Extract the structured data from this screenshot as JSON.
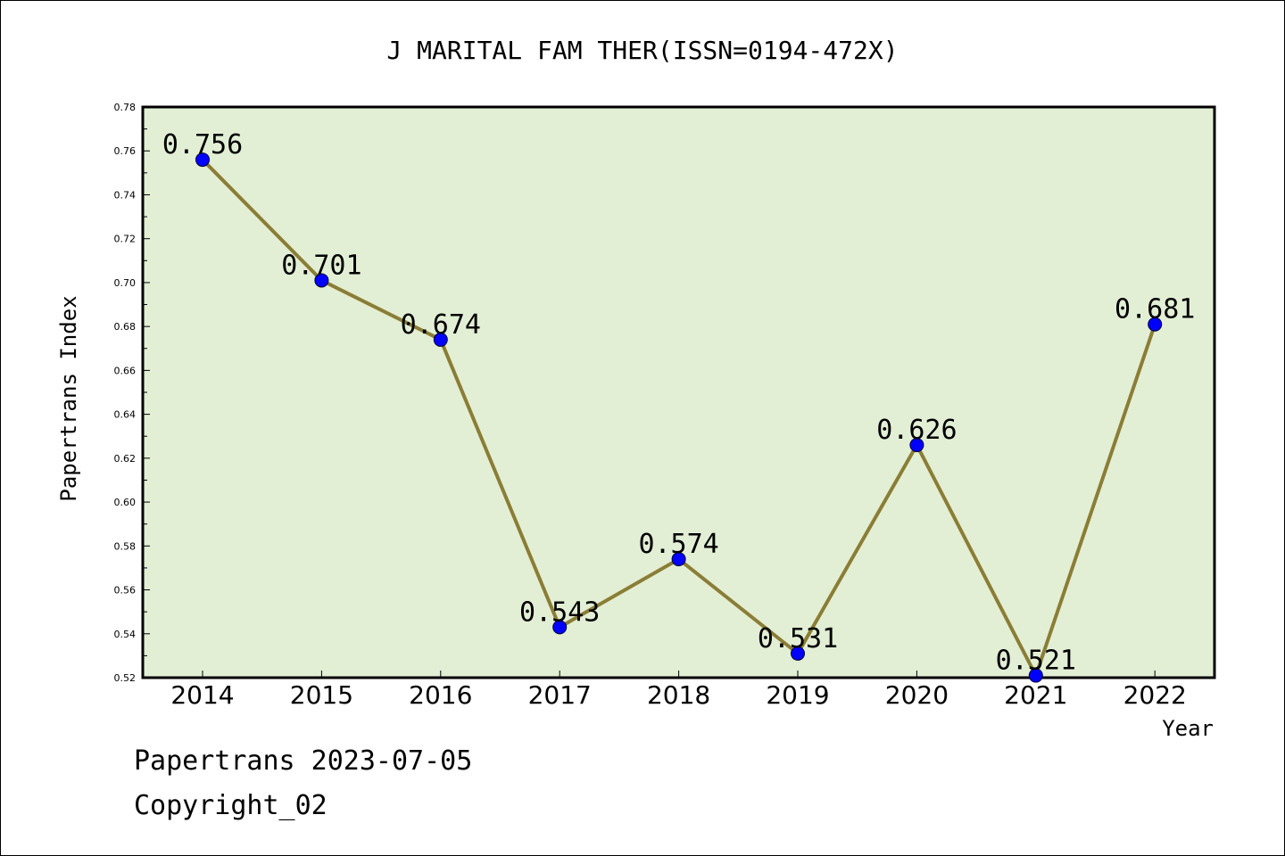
{
  "chart_data": {
    "type": "line",
    "title": "J MARITAL FAM THER(ISSN=0194-472X)",
    "xlabel": "Year",
    "ylabel": "Papertrans Index",
    "categories": [
      "2014",
      "2015",
      "2016",
      "2017",
      "2018",
      "2019",
      "2020",
      "2021",
      "2022"
    ],
    "values": [
      0.756,
      0.701,
      0.674,
      0.543,
      0.574,
      0.531,
      0.626,
      0.521,
      0.681
    ],
    "data_labels": [
      "0.756",
      "0.701",
      "0.674",
      "0.543",
      "0.574",
      "0.531",
      "0.626",
      "0.521",
      "0.681"
    ],
    "ylim": [
      0.52,
      0.78
    ],
    "y_ticks": [
      "0.52",
      "0.54",
      "0.56",
      "0.58",
      "0.60",
      "0.62",
      "0.64",
      "0.66",
      "0.68",
      "0.70",
      "0.72",
      "0.74",
      "0.76",
      "0.78"
    ],
    "grid": false,
    "legend": "none",
    "colors": {
      "plot_background": "#e2efd5",
      "line": "#8b7d35",
      "marker": "#0000ff"
    }
  },
  "footer": {
    "date_line": "Papertrans 2023-07-05",
    "copyright": "Copyright_02"
  }
}
